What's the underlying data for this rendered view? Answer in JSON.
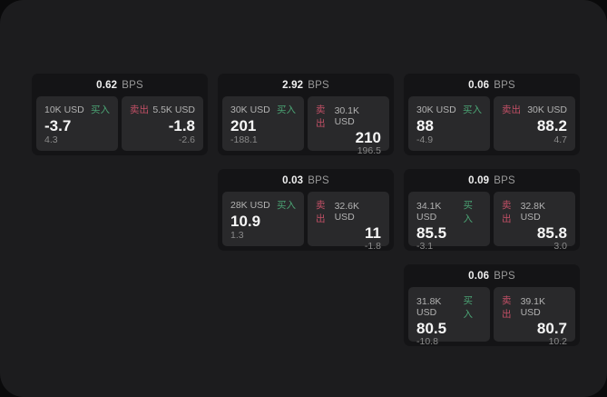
{
  "labels": {
    "bps": "BPS",
    "buy": "买入",
    "sell": "卖出"
  },
  "colors": {
    "buy_accent": "#4ba374",
    "sell_accent": "#c25066",
    "surface": "#1c1c1e",
    "card_bg": "#141416",
    "panel_bg": "#29292b"
  },
  "cards": [
    {
      "col": 1,
      "row": 1,
      "spread": "0.62",
      "buy": {
        "notional": "10K USD",
        "price": "-3.7",
        "change": "4.3"
      },
      "sell": {
        "notional": "5.5K USD",
        "price": "-1.8",
        "change": "-2.6"
      }
    },
    {
      "col": 2,
      "row": 1,
      "spread": "2.92",
      "buy": {
        "notional": "30K USD",
        "price": "201",
        "change": "-188.1"
      },
      "sell": {
        "notional": "30.1K USD",
        "price": "210",
        "change": "196.5"
      }
    },
    {
      "col": 3,
      "row": 1,
      "spread": "0.06",
      "buy": {
        "notional": "30K USD",
        "price": "88",
        "change": "-4.9"
      },
      "sell": {
        "notional": "30K USD",
        "price": "88.2",
        "change": "4.7"
      }
    },
    {
      "col": 2,
      "row": 2,
      "spread": "0.03",
      "buy": {
        "notional": "28K USD",
        "price": "10.9",
        "change": "1.3"
      },
      "sell": {
        "notional": "32.6K USD",
        "price": "11",
        "change": "-1.8"
      }
    },
    {
      "col": 3,
      "row": 2,
      "spread": "0.09",
      "buy": {
        "notional": "34.1K USD",
        "price": "85.5",
        "change": "-3.1"
      },
      "sell": {
        "notional": "32.8K USD",
        "price": "85.8",
        "change": "3.0"
      }
    },
    {
      "col": 3,
      "row": 3,
      "spread": "0.06",
      "buy": {
        "notional": "31.8K USD",
        "price": "80.5",
        "change": "-10.8"
      },
      "sell": {
        "notional": "39.1K USD",
        "price": "80.7",
        "change": "10.2"
      }
    }
  ]
}
